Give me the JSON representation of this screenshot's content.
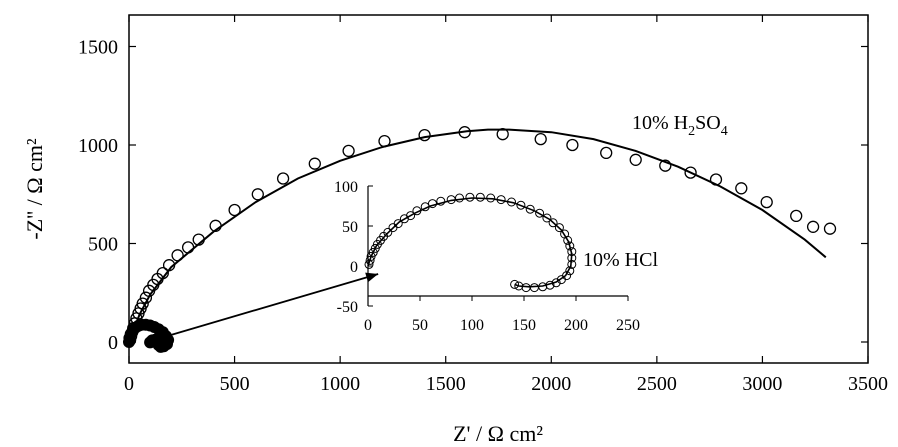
{
  "chart_data": [
    {
      "type": "scatter",
      "role": "main",
      "xlabel": "Z' / Ω cm²",
      "ylabel": "-Z'' / Ω cm²",
      "xlim": [
        0,
        3500
      ],
      "ylim": [
        -100,
        1700
      ],
      "xticks": [
        0,
        500,
        1000,
        1500,
        2000,
        2500,
        3000,
        3500
      ],
      "yticks": [
        0,
        500,
        1000,
        1500
      ],
      "grid": false,
      "series": [
        {
          "name": "10% H2SO4",
          "label_main": "10% H",
          "label_sub1": "2",
          "label_mid": "SO",
          "label_sub2": "4",
          "markers": "open-circle",
          "points": [
            [
              5,
              10
            ],
            [
              10,
              30
            ],
            [
              15,
              50
            ],
            [
              20,
              70
            ],
            [
              28,
              95
            ],
            [
              35,
              120
            ],
            [
              45,
              145
            ],
            [
              55,
              170
            ],
            [
              65,
              195
            ],
            [
              80,
              225
            ],
            [
              95,
              260
            ],
            [
              115,
              290
            ],
            [
              135,
              320
            ],
            [
              160,
              350
            ],
            [
              190,
              390
            ],
            [
              230,
              440
            ],
            [
              280,
              480
            ],
            [
              330,
              520
            ],
            [
              410,
              590
            ],
            [
              500,
              670
            ],
            [
              610,
              750
            ],
            [
              730,
              830
            ],
            [
              880,
              905
            ],
            [
              1040,
              970
            ],
            [
              1210,
              1020
            ],
            [
              1400,
              1050
            ],
            [
              1590,
              1065
            ],
            [
              1770,
              1055
            ],
            [
              1950,
              1030
            ],
            [
              2100,
              1000
            ],
            [
              2260,
              960
            ],
            [
              2400,
              925
            ],
            [
              2540,
              895
            ],
            [
              2660,
              860
            ],
            [
              2780,
              825
            ],
            [
              2900,
              780
            ],
            [
              3020,
              710
            ],
            [
              3160,
              640
            ],
            [
              3240,
              585
            ],
            [
              3320,
              575
            ]
          ],
          "fit": [
            [
              0,
              0
            ],
            [
              50,
              140
            ],
            [
              100,
              240
            ],
            [
              200,
              380
            ],
            [
              400,
              560
            ],
            [
              600,
              710
            ],
            [
              800,
              830
            ],
            [
              1000,
              920
            ],
            [
              1200,
              990
            ],
            [
              1400,
              1040
            ],
            [
              1600,
              1070
            ],
            [
              1700,
              1078
            ],
            [
              1800,
              1078
            ],
            [
              2000,
              1065
            ],
            [
              2200,
              1030
            ],
            [
              2400,
              970
            ],
            [
              2600,
              890
            ],
            [
              2800,
              790
            ],
            [
              3000,
              670
            ],
            [
              3200,
              520
            ],
            [
              3300,
              430
            ]
          ]
        },
        {
          "name": "10% HCl",
          "markers": "filled-spiral",
          "points": [
            [
              0,
              0
            ],
            [
              2,
              20
            ],
            [
              8,
              40
            ],
            [
              18,
              58
            ],
            [
              30,
              72
            ],
            [
              45,
              82
            ],
            [
              60,
              88
            ],
            [
              80,
              88
            ],
            [
              100,
              84
            ],
            [
              120,
              76
            ],
            [
              140,
              65
            ],
            [
              160,
              50
            ],
            [
              175,
              30
            ],
            [
              185,
              10
            ],
            [
              180,
              -10
            ],
            [
              165,
              -22
            ],
            [
              150,
              -25
            ],
            [
              140,
              -15
            ],
            [
              133,
              0
            ],
            [
              125,
              12
            ],
            [
              110,
              8
            ],
            [
              100,
              -2
            ]
          ]
        }
      ],
      "arrow": {
        "from": [
          180,
          30
        ],
        "to": [
          1180,
          345
        ]
      }
    },
    {
      "type": "scatter",
      "role": "inset",
      "xlim": [
        0,
        250
      ],
      "ylim": [
        -50,
        100
      ],
      "xticks": [
        0,
        50,
        100,
        150,
        200,
        250
      ],
      "yticks": [
        -50,
        0,
        50,
        100
      ],
      "series": [
        {
          "name": "10% HCl",
          "label": "10% HCl",
          "markers": "open-circle",
          "points": [
            [
              1,
              2
            ],
            [
              2,
              7
            ],
            [
              3,
              12
            ],
            [
              5,
              17
            ],
            [
              7,
              22
            ],
            [
              9,
              27
            ],
            [
              12,
              32
            ],
            [
              15,
              37
            ],
            [
              19,
              42
            ],
            [
              24,
              48
            ],
            [
              29,
              53
            ],
            [
              35,
              59
            ],
            [
              41,
              63
            ],
            [
              47,
              69
            ],
            [
              55,
              74
            ],
            [
              62,
              78
            ],
            [
              70,
              81
            ],
            [
              80,
              83
            ],
            [
              88,
              85
            ],
            [
              98,
              86
            ],
            [
              108,
              86
            ],
            [
              118,
              85
            ],
            [
              128,
              83
            ],
            [
              138,
              80
            ],
            [
              147,
              76
            ],
            [
              156,
              71
            ],
            [
              165,
              66
            ],
            [
              172,
              60
            ],
            [
              178,
              54
            ],
            [
              184,
              48
            ],
            [
              189,
              40
            ],
            [
              192,
              32
            ],
            [
              194,
              25
            ],
            [
              196,
              18
            ],
            [
              196,
              10
            ],
            [
              196,
              2
            ],
            [
              194,
              -6
            ],
            [
              191,
              -12
            ],
            [
              186,
              -17
            ],
            [
              181,
              -21
            ],
            [
              175,
              -24
            ],
            [
              168,
              -26
            ],
            [
              160,
              -27
            ],
            [
              152,
              -27
            ],
            [
              145,
              -25
            ],
            [
              141,
              -23
            ]
          ],
          "fit": [
            [
              0,
              0
            ],
            [
              3,
              12
            ],
            [
              8,
              25
            ],
            [
              18,
              40
            ],
            [
              30,
              55
            ],
            [
              45,
              66
            ],
            [
              60,
              75
            ],
            [
              80,
              82
            ],
            [
              100,
              85
            ],
            [
              120,
              84
            ],
            [
              140,
              79
            ],
            [
              160,
              69
            ],
            [
              175,
              58
            ],
            [
              186,
              45
            ],
            [
              193,
              30
            ],
            [
              196,
              15
            ],
            [
              195,
              0
            ],
            [
              190,
              -12
            ],
            [
              181,
              -20
            ],
            [
              168,
              -25
            ],
            [
              155,
              -26
            ],
            [
              145,
              -25
            ],
            [
              141,
              -23
            ]
          ]
        }
      ]
    }
  ]
}
